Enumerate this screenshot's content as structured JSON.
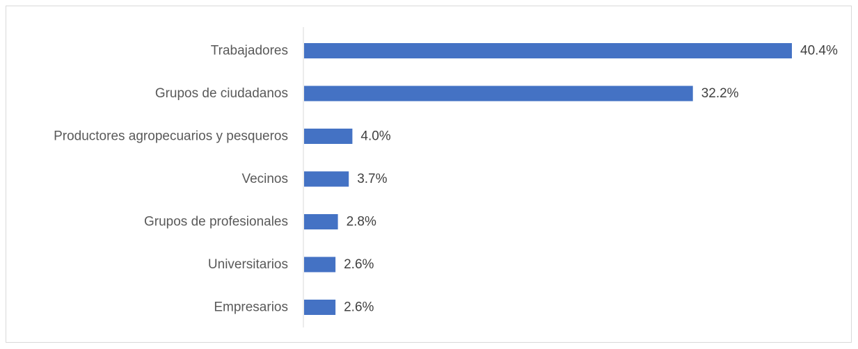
{
  "chart_data": {
    "type": "bar",
    "orientation": "horizontal",
    "categories": [
      "Trabajadores",
      "Grupos de ciudadanos",
      "Productores agropecuarios y pesqueros",
      "Vecinos",
      "Grupos de profesionales",
      "Universitarios",
      "Empresarios"
    ],
    "values": [
      40.4,
      32.2,
      4.0,
      3.7,
      2.8,
      2.6,
      2.6
    ],
    "value_labels": [
      "40.4%",
      "32.2%",
      "4.0%",
      "3.7%",
      "2.8%",
      "2.6%",
      "2.6%"
    ],
    "unit": "%",
    "xlim": [
      0,
      40.4
    ],
    "title": "",
    "xlabel": "",
    "ylabel": "",
    "grid": false,
    "legend": "none",
    "bar_color": "#4472c4",
    "axis_color": "#d9d9d9",
    "label_color": "#595959",
    "value_label_color": "#404040"
  }
}
